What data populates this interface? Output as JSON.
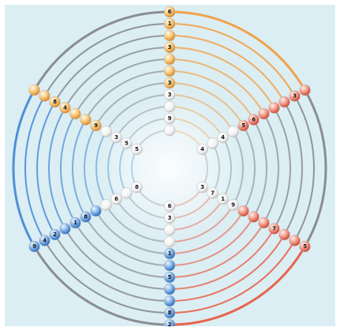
{
  "puzzle": {
    "rings": 11,
    "spokes": 6,
    "givens": [
      {
        "ring": 10,
        "spoke": 0,
        "value": "6"
      },
      {
        "ring": 9,
        "spoke": 0,
        "value": "1"
      },
      {
        "ring": 7,
        "spoke": 0,
        "value": "3"
      },
      {
        "ring": 9,
        "spoke": 1,
        "value": "3"
      },
      {
        "ring": 10,
        "spoke": 2,
        "value": "5"
      },
      {
        "ring": 7,
        "spoke": 2,
        "value": "7"
      },
      {
        "ring": 9,
        "spoke": 3,
        "value": "8"
      },
      {
        "ring": 10,
        "spoke": 3,
        "value": "2"
      },
      {
        "ring": 6,
        "spoke": 3,
        "value": "5"
      },
      {
        "ring": 10,
        "spoke": 4,
        "value": "9"
      },
      {
        "ring": 9,
        "spoke": 4,
        "value": "4"
      },
      {
        "ring": 8,
        "spoke": 4,
        "value": "2"
      },
      {
        "ring": 6,
        "spoke": 4,
        "value": "1"
      },
      {
        "ring": 5,
        "spoke": 4,
        "value": "8"
      },
      {
        "ring": 4,
        "spoke": 5,
        "value": "9"
      },
      {
        "ring": 2,
        "spoke": 5,
        "value": "3"
      },
      {
        "ring": 7,
        "spoke": 5,
        "value": "4"
      },
      {
        "ring": 8,
        "spoke": 5,
        "value": "8"
      },
      {
        "ring": 1,
        "spoke": 0,
        "value": "9"
      },
      {
        "ring": 3,
        "spoke": 0,
        "value": "3"
      },
      {
        "ring": 4,
        "spoke": 1,
        "value": "5"
      },
      {
        "ring": 5,
        "spoke": 1,
        "value": "6"
      },
      {
        "ring": 2,
        "spoke": 1,
        "value": "4"
      },
      {
        "ring": 2,
        "spoke": 2,
        "value": "1"
      },
      {
        "ring": 1,
        "spoke": 2,
        "value": "7"
      },
      {
        "ring": 3,
        "spoke": 2,
        "value": "9"
      },
      {
        "ring": 4,
        "spoke": 3,
        "value": "1"
      },
      {
        "ring": 1,
        "spoke": 3,
        "value": "3"
      },
      {
        "ring": 2,
        "spoke": 4,
        "value": "6"
      },
      {
        "ring": 1,
        "spoke": 5,
        "value": "5"
      },
      {
        "ring": 4,
        "spoke": 0,
        "value": "3"
      },
      {
        "ring": 0,
        "spoke": 2,
        "value": "3"
      },
      {
        "ring": 0,
        "spoke": 5,
        "value": "5"
      },
      {
        "ring": 0,
        "spoke": 1,
        "value": "4"
      },
      {
        "ring": 0,
        "spoke": 3,
        "value": "6"
      },
      {
        "ring": 0,
        "spoke": 4,
        "value": "8"
      }
    ]
  },
  "colors": {
    "background": "#dbeef3",
    "orange": "#f2a24a",
    "red": "#e8654f",
    "blue": "#4f8fd6",
    "gray": "#8a8d92",
    "ball_default": "#ffffff"
  }
}
